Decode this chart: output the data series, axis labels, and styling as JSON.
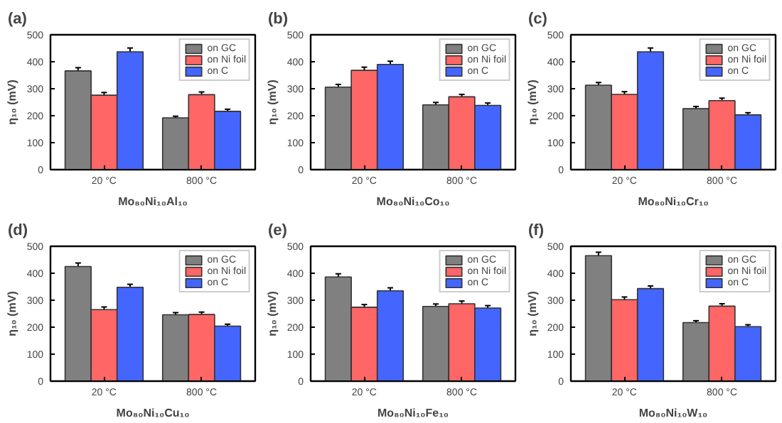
{
  "chart_data": [
    {
      "type": "bar",
      "title": "(a)",
      "xlabel": "Mo₈₀Ni₁₀Al₁₀",
      "ylabel": "η₁₀ (mV)",
      "categories": [
        "20 °C",
        "800 °C"
      ],
      "ylim": [
        0,
        500
      ],
      "yticks": [
        0,
        100,
        200,
        300,
        400,
        500
      ],
      "grid": false,
      "legend": "top right",
      "series": [
        {
          "name": "on GC",
          "color": "#808080",
          "values": [
            366,
            192
          ],
          "errors": [
            12,
            6
          ]
        },
        {
          "name": "on Ni foil",
          "color": "#ff6666",
          "values": [
            276,
            278
          ],
          "errors": [
            10,
            10
          ]
        },
        {
          "name": "on C",
          "color": "#4466ff",
          "values": [
            437,
            216
          ],
          "errors": [
            14,
            8
          ]
        }
      ]
    },
    {
      "type": "bar",
      "title": "(b)",
      "xlabel": "Mo₈₀Ni₁₀Co₁₀",
      "ylabel": "η₁₀ (mV)",
      "categories": [
        "20 °C",
        "800 °C"
      ],
      "ylim": [
        0,
        500
      ],
      "yticks": [
        0,
        100,
        200,
        300,
        400,
        500
      ],
      "grid": false,
      "legend": "top right",
      "series": [
        {
          "name": "on GC",
          "color": "#808080",
          "values": [
            306,
            240
          ],
          "errors": [
            10,
            9
          ]
        },
        {
          "name": "on Ni foil",
          "color": "#ff6666",
          "values": [
            368,
            270
          ],
          "errors": [
            12,
            9
          ]
        },
        {
          "name": "on C",
          "color": "#4466ff",
          "values": [
            390,
            238
          ],
          "errors": [
            12,
            9
          ]
        }
      ]
    },
    {
      "type": "bar",
      "title": "(c)",
      "xlabel": "Mo₈₀Ni₁₀Cr₁₀",
      "ylabel": "η₁₀ (mV)",
      "categories": [
        "20 °C",
        "800 °C"
      ],
      "ylim": [
        0,
        500
      ],
      "yticks": [
        0,
        100,
        200,
        300,
        400,
        500
      ],
      "grid": false,
      "legend": "top right",
      "series": [
        {
          "name": "on GC",
          "color": "#808080",
          "values": [
            313,
            226
          ],
          "errors": [
            10,
            8
          ]
        },
        {
          "name": "on Ni foil",
          "color": "#ff6666",
          "values": [
            279,
            256
          ],
          "errors": [
            10,
            9
          ]
        },
        {
          "name": "on C",
          "color": "#4466ff",
          "values": [
            437,
            203
          ],
          "errors": [
            14,
            8
          ]
        }
      ]
    },
    {
      "type": "bar",
      "title": "(d)",
      "xlabel": "Mo₈₀Ni₁₀Cu₁₀",
      "ylabel": "η₁₀ (mV)",
      "categories": [
        "20 °C",
        "800 °C"
      ],
      "ylim": [
        0,
        500
      ],
      "yticks": [
        0,
        100,
        200,
        300,
        400,
        500
      ],
      "grid": false,
      "legend": "top right",
      "series": [
        {
          "name": "on GC",
          "color": "#808080",
          "values": [
            425,
            246
          ],
          "errors": [
            13,
            8
          ]
        },
        {
          "name": "on Ni foil",
          "color": "#ff6666",
          "values": [
            265,
            247
          ],
          "errors": [
            10,
            9
          ]
        },
        {
          "name": "on C",
          "color": "#4466ff",
          "values": [
            348,
            204
          ],
          "errors": [
            11,
            7
          ]
        }
      ]
    },
    {
      "type": "bar",
      "title": "(e)",
      "xlabel": "Mo₈₀Ni₁₀Fe₁₀",
      "ylabel": "η₁₀ (mV)",
      "categories": [
        "20 °C",
        "800 °C"
      ],
      "ylim": [
        0,
        500
      ],
      "yticks": [
        0,
        100,
        200,
        300,
        400,
        500
      ],
      "grid": false,
      "legend": "top right",
      "series": [
        {
          "name": "on GC",
          "color": "#808080",
          "values": [
            386,
            277
          ],
          "errors": [
            12,
            9
          ]
        },
        {
          "name": "on Ni foil",
          "color": "#ff6666",
          "values": [
            274,
            287
          ],
          "errors": [
            10,
            10
          ]
        },
        {
          "name": "on C",
          "color": "#4466ff",
          "values": [
            335,
            271
          ],
          "errors": [
            11,
            9
          ]
        }
      ]
    },
    {
      "type": "bar",
      "title": "(f)",
      "xlabel": "Mo₈₀Ni₁₀W₁₀",
      "ylabel": "η₁₀ (mV)",
      "categories": [
        "20 °C",
        "800 °C"
      ],
      "ylim": [
        0,
        500
      ],
      "yticks": [
        0,
        100,
        200,
        300,
        400,
        500
      ],
      "grid": false,
      "legend": "top right",
      "series": [
        {
          "name": "on GC",
          "color": "#808080",
          "values": [
            465,
            217
          ],
          "errors": [
            13,
            7
          ]
        },
        {
          "name": "on Ni foil",
          "color": "#ff6666",
          "values": [
            302,
            278
          ],
          "errors": [
            10,
            9
          ]
        },
        {
          "name": "on C",
          "color": "#4466ff",
          "values": [
            343,
            202
          ],
          "errors": [
            10,
            7
          ]
        }
      ]
    }
  ]
}
